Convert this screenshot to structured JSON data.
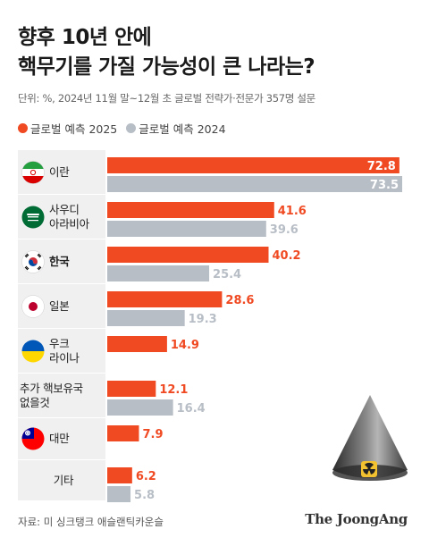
{
  "title_lines": [
    "향후 10년 안에",
    "핵무기를 가질 가능성이 큰 나라는?"
  ],
  "subtitle": "단위: %, 2024년 11월 말~12월 초 글로벌 전략가·전문가 357명 설문",
  "legend": [
    {
      "label": "글로벌 예측 2025",
      "color": "#f04a23"
    },
    {
      "label": "글로벌 예측 2024",
      "color": "#b8bec6"
    }
  ],
  "rows": [
    {
      "label": "이란",
      "flag": "iran-flag-icon",
      "bold": false
    },
    {
      "label": "사우디\n아라비아",
      "flag": "saudi-flag-icon",
      "bold": false
    },
    {
      "label": "한국",
      "flag": "korea-flag-icon",
      "bold": true
    },
    {
      "label": "일본",
      "flag": "japan-flag-icon",
      "bold": false
    },
    {
      "label": "우크\n라이나",
      "flag": "ukraine-flag-icon",
      "bold": false
    },
    {
      "label": "추가 핵보유국\n없을것",
      "flag": "",
      "bold": false
    },
    {
      "label": "대만",
      "flag": "taiwan-flag-icon",
      "bold": false
    },
    {
      "label": "기타",
      "flag": "",
      "bold": false
    }
  ],
  "chart_data": {
    "type": "bar",
    "orientation": "horizontal",
    "categories": [
      "이란",
      "사우디 아라비아",
      "한국",
      "일본",
      "우크라이나",
      "추가 핵보유국 없을것",
      "대만",
      "기타"
    ],
    "series": [
      {
        "name": "글로벌 예측 2025",
        "color": "#f04a23",
        "values": [
          72.8,
          41.6,
          40.2,
          28.6,
          14.9,
          12.1,
          7.9,
          6.2
        ]
      },
      {
        "name": "글로벌 예측 2024",
        "color": "#b8bec6",
        "values": [
          73.5,
          39.6,
          25.4,
          19.3,
          null,
          16.4,
          null,
          5.8
        ]
      }
    ],
    "xlim": [
      0,
      73.5
    ],
    "grid": false
  },
  "source": "자료: 미 싱크탱크 애슬랜틱카운슬",
  "brand": "The JoongAng"
}
